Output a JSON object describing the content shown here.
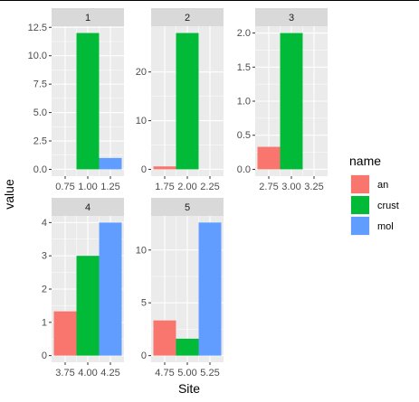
{
  "chart_data": {
    "type": "bar",
    "layout": "facet_wrap",
    "xlabel": "Site",
    "ylabel": "value",
    "legend": {
      "title": "name",
      "placement": "right",
      "entries": [
        {
          "name": "an",
          "color": "#F8766D"
        },
        {
          "name": "crust",
          "color": "#00BA38"
        },
        {
          "name": "mol",
          "color": "#619CFF"
        }
      ]
    },
    "colors": {
      "panel_bg": "#EBEBEB",
      "strip_bg": "#D9D9D9",
      "grid": "#FFFFFF",
      "axis_text": "#4D4D4D",
      "title_text": "#000000"
    },
    "facets": [
      {
        "label": "1",
        "xlim": [
          0.6,
          1.4
        ],
        "ylim": [
          -0.6,
          12.6
        ],
        "x_ticks": [
          "0.75",
          "1.00",
          "1.25"
        ],
        "y_ticks": [
          "0.0",
          "2.5",
          "5.0",
          "7.5",
          "10.0",
          "12.5"
        ],
        "bars": [
          {
            "series": "an",
            "x": 0.75,
            "value": 0
          },
          {
            "series": "crust",
            "x": 1.0,
            "value": 12
          },
          {
            "series": "mol",
            "x": 1.25,
            "value": 1
          }
        ]
      },
      {
        "label": "2",
        "xlim": [
          1.6,
          2.4
        ],
        "ylim": [
          -1.4,
          29.4
        ],
        "x_ticks": [
          "1.75",
          "2.00",
          "2.25"
        ],
        "y_ticks": [
          "0",
          "10",
          "20"
        ],
        "bars": [
          {
            "series": "an",
            "x": 1.75,
            "value": 0.6
          },
          {
            "series": "crust",
            "x": 2.0,
            "value": 28
          },
          {
            "series": "mol",
            "x": 2.25,
            "value": 0
          }
        ]
      },
      {
        "label": "3",
        "xlim": [
          2.6,
          3.4
        ],
        "ylim": [
          -0.1,
          2.1
        ],
        "x_ticks": [
          "2.75",
          "3.00",
          "3.25"
        ],
        "y_ticks": [
          "0.0",
          "0.5",
          "1.0",
          "1.5",
          "2.0"
        ],
        "bars": [
          {
            "series": "an",
            "x": 2.75,
            "value": 0.33
          },
          {
            "series": "crust",
            "x": 3.0,
            "value": 2
          },
          {
            "series": "mol",
            "x": 3.25,
            "value": 0
          }
        ]
      },
      {
        "label": "4",
        "xlim": [
          3.6,
          4.4
        ],
        "ylim": [
          -0.2,
          4.2
        ],
        "x_ticks": [
          "3.75",
          "4.00",
          "4.25"
        ],
        "y_ticks": [
          "0",
          "1",
          "2",
          "3",
          "4"
        ],
        "bars": [
          {
            "series": "an",
            "x": 3.75,
            "value": 1.33
          },
          {
            "series": "crust",
            "x": 4.0,
            "value": 3
          },
          {
            "series": "mol",
            "x": 4.25,
            "value": 4
          }
        ]
      },
      {
        "label": "5",
        "xlim": [
          4.6,
          5.4
        ],
        "ylim": [
          -0.63,
          13.23
        ],
        "x_ticks": [
          "4.75",
          "5.00",
          "5.25"
        ],
        "y_ticks": [
          "0",
          "5",
          "10"
        ],
        "bars": [
          {
            "series": "an",
            "x": 4.75,
            "value": 3.33
          },
          {
            "series": "crust",
            "x": 5.0,
            "value": 1.6
          },
          {
            "series": "mol",
            "x": 5.25,
            "value": 12.6
          }
        ]
      }
    ]
  }
}
